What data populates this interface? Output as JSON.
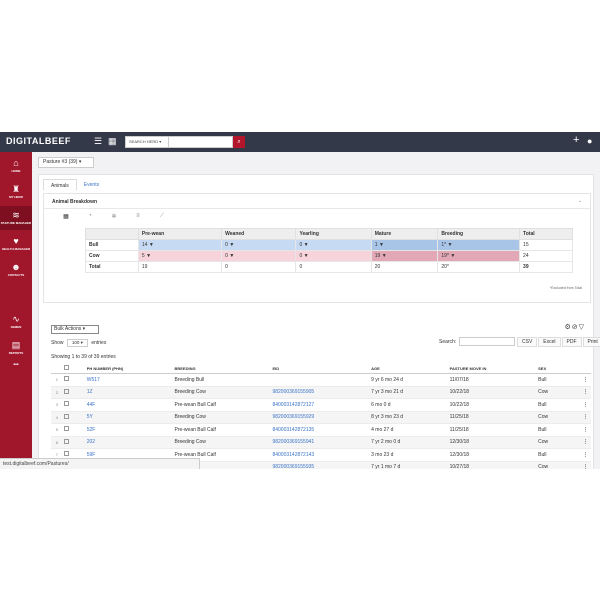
{
  "header": {
    "logo": "DIGITALBEEF",
    "search_dropdown": "SEARCH HERD",
    "search_placeholder": ""
  },
  "sidebar": {
    "items": [
      {
        "label": "HOME",
        "icon": "home-icon"
      },
      {
        "label": "MY HERD",
        "icon": "herd-icon"
      },
      {
        "label": "PASTURE MANAGER",
        "icon": "pasture-icon"
      },
      {
        "label": "HEALTH MANAGER",
        "icon": "health-icon"
      },
      {
        "label": "CONTACTS",
        "icon": "contacts-icon"
      },
      {
        "label": "SEMEN",
        "icon": "semen-icon"
      },
      {
        "label": "REPORTS",
        "icon": "reports-icon"
      },
      {
        "label": "•••",
        "icon": "more-icon"
      }
    ]
  },
  "pasture_select": "Pasture #3 (39)",
  "tabs": [
    "Animals",
    "Events"
  ],
  "breakdown": {
    "title": "Animal Breakdown",
    "columns": [
      "",
      "Pre-wean",
      "Weaned",
      "Yearling",
      "Mature",
      "Breeding",
      "Total"
    ],
    "rows": [
      {
        "label": "Bull",
        "cells": [
          "14",
          "0",
          "0",
          "1",
          "1*",
          "15"
        ]
      },
      {
        "label": "Cow",
        "cells": [
          "5",
          "0",
          "0",
          "19",
          "19*",
          "24"
        ]
      },
      {
        "label": "Total",
        "cells": [
          "19",
          "0",
          "0",
          "20",
          "20*",
          "39"
        ]
      }
    ],
    "footnote": "*Excluded from Total"
  },
  "bulk_actions": "Bulk Actions",
  "show": {
    "prefix": "Show",
    "value": "100",
    "suffix": "entries"
  },
  "search_label": "Search:",
  "export_buttons": [
    "CSV",
    "Excel",
    "PDF",
    "Print"
  ],
  "showing": "Showing 1 to 39 of 39 entries",
  "table": {
    "headers": [
      "PH NUMBER (PHN)",
      "BREEDING",
      "EID",
      "AGE",
      "PASTURE MOVE IN",
      "SEX"
    ],
    "rows": [
      {
        "n": "1",
        "phn": "W517",
        "breeding": "Breeding Bull",
        "eid": "",
        "age": "9 yr 6 mo 24 d",
        "move_in": "11/07/18",
        "sex": "Bull"
      },
      {
        "n": "2",
        "phn": "1Z",
        "breeding": "Breeding Cow",
        "eid": "982000369155905",
        "age": "7 yr 3 mo 21 d",
        "move_in": "10/22/18",
        "sex": "Cow"
      },
      {
        "n": "3",
        "phn": "44F",
        "breeding": "Pre-wean Bull Calf",
        "eid": "840003142872127",
        "age": "6 mo 0 d",
        "move_in": "10/22/18",
        "sex": "Bull"
      },
      {
        "n": "4",
        "phn": "5Y",
        "breeding": "Breeding Cow",
        "eid": "982000369155929",
        "age": "8 yr 3 mo 23 d",
        "move_in": "11/25/18",
        "sex": "Cow"
      },
      {
        "n": "5",
        "phn": "52F",
        "breeding": "Pre-wean Bull Calf",
        "eid": "840003142872135",
        "age": "4 mo 27 d",
        "move_in": "11/25/18",
        "sex": "Bull"
      },
      {
        "n": "6",
        "phn": "202",
        "breeding": "Breeding Cow",
        "eid": "982000369155941",
        "age": "7 yr 2 mo 0 d",
        "move_in": "12/30/18",
        "sex": "Cow"
      },
      {
        "n": "7",
        "phn": "59F",
        "breeding": "Pre-wean Bull Calf",
        "eid": "840003142872143",
        "age": "3 mo 23 d",
        "move_in": "12/30/18",
        "sex": "Bull"
      },
      {
        "n": "8",
        "phn": "",
        "breeding": "Cow",
        "eid": "982000369155935",
        "age": "7 yr 1 mo 7 d",
        "move_in": "10/27/18",
        "sex": "Cow"
      }
    ]
  },
  "status_url": "test.digitalbeef.com/Pastures/"
}
